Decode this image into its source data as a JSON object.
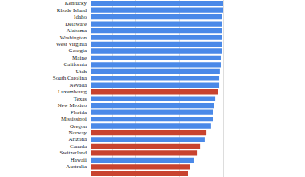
{
  "chart_data": {
    "type": "bar",
    "orientation": "horizontal",
    "categories": [
      "Kentucky",
      "Rhode Island",
      "Idaho",
      "Delaware",
      "Alabama",
      "Washington",
      "West Virginia",
      "Georgia",
      "Maine",
      "California",
      "Utah",
      "South Carolina",
      "Nevada",
      "Luxembourg",
      "Texas",
      "New Mexico",
      "Florida",
      "Mississippi",
      "Oregon",
      "Norway",
      "Arizona",
      "Canada",
      "Switzerland",
      "Hawaii",
      "Australia",
      null
    ],
    "values": [
      60,
      60,
      59.6,
      59.6,
      59.6,
      59.3,
      59.3,
      59.3,
      58.9,
      58.9,
      58.5,
      58.2,
      58.2,
      57.5,
      56.4,
      56,
      55.6,
      55.3,
      54.5,
      52.4,
      51.6,
      49.5,
      48.4,
      46.9,
      45.1,
      44
    ],
    "colors": [
      "#4a89e8",
      "#4a89e8",
      "#4a89e8",
      "#4a89e8",
      "#4a89e8",
      "#4a89e8",
      "#4a89e8",
      "#4a89e8",
      "#4a89e8",
      "#4a89e8",
      "#4a89e8",
      "#4a89e8",
      "#4a89e8",
      "#c8432f",
      "#4a89e8",
      "#4a89e8",
      "#4a89e8",
      "#4a89e8",
      "#4a89e8",
      "#c8432f",
      "#4a89e8",
      "#c8432f",
      "#c8432f",
      "#4a89e8",
      "#c8432f",
      "#c8432f"
    ],
    "xlim": [
      0,
      60
    ],
    "xticks": [
      0,
      10,
      20,
      30,
      40,
      50,
      60
    ],
    "grid": true,
    "tick_labels": "y"
  }
}
